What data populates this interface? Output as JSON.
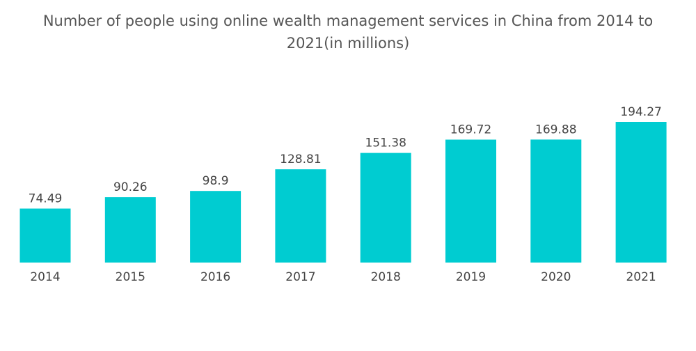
{
  "chart_data": {
    "type": "bar",
    "title": "Number of people using online wealth management services in China from 2014 to 2021(in millions)",
    "categories": [
      "2014",
      "2015",
      "2016",
      "2017",
      "2018",
      "2019",
      "2020",
      "2021"
    ],
    "values": [
      74.49,
      90.26,
      98.9,
      128.81,
      151.38,
      169.72,
      169.88,
      194.27
    ],
    "value_labels": [
      "74.49",
      "90.26",
      "98.9",
      "128.81",
      "151.38",
      "169.72",
      "169.88",
      "194.27"
    ],
    "xlabel": "",
    "ylabel": "",
    "ylim": [
      0,
      194.27
    ],
    "grid": false,
    "bar_color": "#00CCD1"
  }
}
